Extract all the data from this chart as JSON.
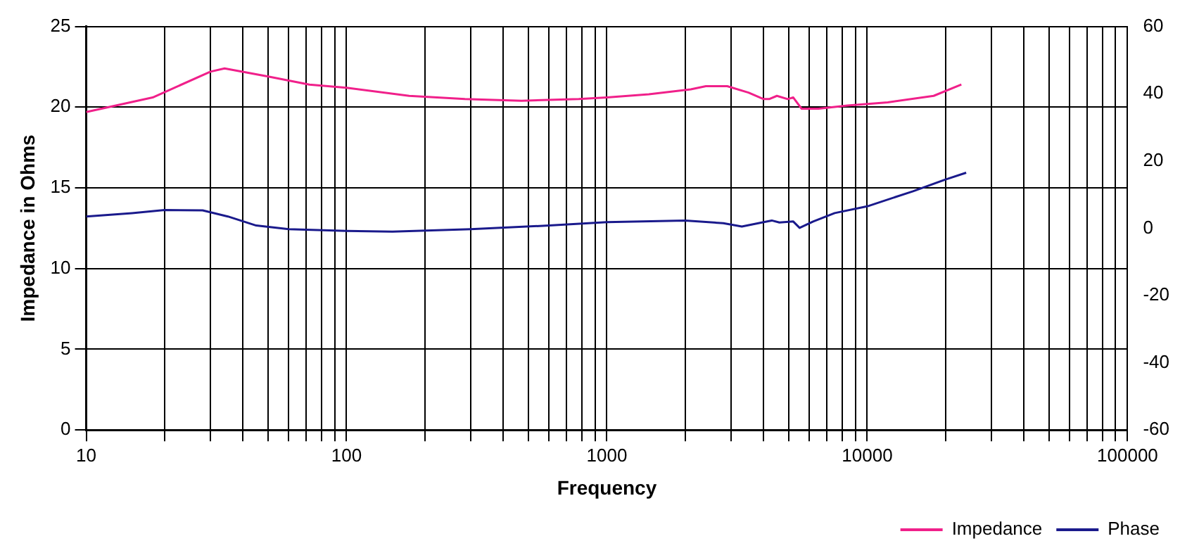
{
  "chart_data": {
    "type": "line",
    "xlabel": "Frequency",
    "ylabel": "Impedance in Ohms",
    "log": "x",
    "xlim": [
      10,
      100000
    ],
    "xticks": [
      10,
      {
        "value": 20,
        "label": null
      },
      {
        "value": 30,
        "label": null
      },
      {
        "value": 40,
        "label": null
      },
      {
        "value": 50,
        "label": null
      },
      {
        "value": 60,
        "label": null
      },
      {
        "value": 70,
        "label": null
      },
      {
        "value": 80,
        "label": null
      },
      {
        "value": 90,
        "label": null
      },
      100,
      {
        "value": 200,
        "label": null
      },
      {
        "value": 300,
        "label": null
      },
      {
        "value": 400,
        "label": null
      },
      {
        "value": 500,
        "label": null
      },
      {
        "value": 600,
        "label": null
      },
      {
        "value": 700,
        "label": null
      },
      {
        "value": 800,
        "label": null
      },
      {
        "value": 900,
        "label": null
      },
      1000,
      {
        "value": 2000,
        "label": null
      },
      {
        "value": 3000,
        "label": null
      },
      {
        "value": 4000,
        "label": null
      },
      {
        "value": 5000,
        "label": null
      },
      {
        "value": 6000,
        "label": null
      },
      {
        "value": 7000,
        "label": null
      },
      {
        "value": 8000,
        "label": null
      },
      {
        "value": 9000,
        "label": null
      },
      10000,
      {
        "value": 20000,
        "label": null
      },
      {
        "value": 30000,
        "label": null
      },
      {
        "value": 40000,
        "label": null
      },
      {
        "value": 50000,
        "label": null
      },
      {
        "value": 60000,
        "label": null
      },
      {
        "value": 70000,
        "label": null
      },
      {
        "value": 80000,
        "label": null
      },
      {
        "value": 90000,
        "label": null
      },
      100000
    ],
    "ylim": [
      0,
      25
    ],
    "yticks": [
      0,
      5,
      10,
      15,
      20,
      25
    ],
    "y2lim": [
      -60,
      60
    ],
    "y2ticks": [
      -60,
      -40,
      -20,
      0,
      20,
      40,
      60
    ],
    "grid": true,
    "legend": "bottom right",
    "marker": "none",
    "line_style": "solid",
    "series": [
      {
        "name": "Impedance",
        "color": "#f0208a",
        "x": [
          10,
          18,
          30,
          34,
          50,
          72,
          100,
          174,
          285,
          470,
          780,
          1000,
          1450,
          2100,
          2400,
          2900,
          3500,
          4000,
          4200,
          4500,
          4950,
          5200,
          5600,
          6500,
          8400,
          12000,
          18000,
          23000
        ],
        "values": [
          19.7,
          20.6,
          22.2,
          22.4,
          21.9,
          21.4,
          21.2,
          20.7,
          20.5,
          20.4,
          20.5,
          20.6,
          20.8,
          21.1,
          21.3,
          21.3,
          20.9,
          20.5,
          20.5,
          20.7,
          20.5,
          20.6,
          19.9,
          19.9,
          20.1,
          20.3,
          20.7,
          21.4
        ]
      },
      {
        "name": "Phase",
        "color": "#1a1a8c",
        "axis": "y2",
        "x": [
          10,
          15,
          20,
          28,
          35,
          45,
          60,
          100,
          150,
          300,
          600,
          1000,
          2000,
          2800,
          3300,
          4000,
          4300,
          4600,
          5200,
          5500,
          6200,
          7500,
          10000,
          15000,
          20000,
          24000
        ],
        "values": [
          3.5,
          4.5,
          5.4,
          5.3,
          3.5,
          0.8,
          -0.3,
          -0.8,
          -1,
          -0.3,
          0.8,
          1.8,
          2.3,
          1.5,
          0.5,
          1.8,
          2.3,
          1.7,
          2,
          0.1,
          2,
          4.5,
          6.5,
          11,
          14.5,
          16.5
        ]
      }
    ]
  }
}
